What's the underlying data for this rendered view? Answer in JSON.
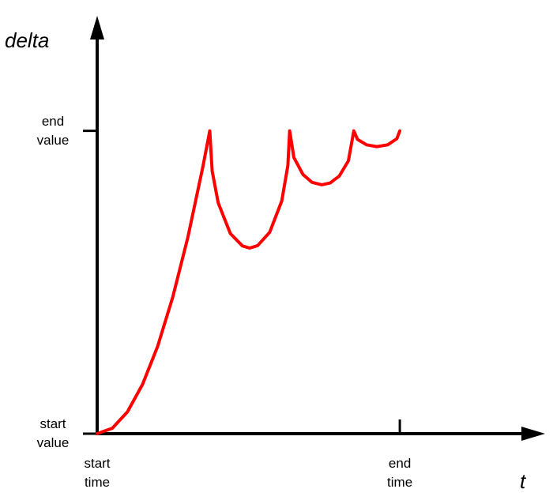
{
  "chart_data": {
    "type": "line",
    "y_label": "delta",
    "x_label": "t",
    "x": [
      0,
      0.05,
      0.1,
      0.15,
      0.2,
      0.25,
      0.3,
      0.35,
      0.372,
      0.38,
      0.4,
      0.44,
      0.48,
      0.504,
      0.53,
      0.57,
      0.61,
      0.63,
      0.636,
      0.65,
      0.68,
      0.71,
      0.742,
      0.77,
      0.8,
      0.83,
      0.848,
      0.86,
      0.89,
      0.924,
      0.96,
      0.99,
      1
    ],
    "values": [
      0,
      0.018,
      0.072,
      0.163,
      0.289,
      0.452,
      0.65,
      0.885,
      1,
      0.867,
      0.762,
      0.661,
      0.62,
      0.613,
      0.621,
      0.665,
      0.769,
      0.885,
      1,
      0.912,
      0.856,
      0.83,
      0.822,
      0.828,
      0.851,
      0.901,
      1,
      0.972,
      0.954,
      0.948,
      0.954,
      0.974,
      1
    ],
    "color": "#ff0000",
    "xlim": [
      0,
      1.48
    ],
    "ylim": [
      0,
      1.38
    ],
    "xticks": [
      {
        "value": 0,
        "label": "start time"
      },
      {
        "value": 1,
        "label": "end time"
      }
    ],
    "yticks": [
      {
        "value": 0,
        "label": "start value"
      },
      {
        "value": 1,
        "label": "end value"
      }
    ]
  }
}
